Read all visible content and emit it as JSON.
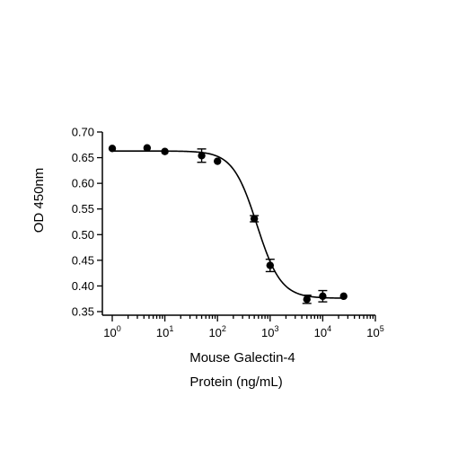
{
  "chart_data": {
    "type": "scatter",
    "title": "",
    "xlabel": [
      "Mouse Galectin-4",
      "Protein (ng/mL)"
    ],
    "ylabel": "OD 450nm",
    "xscale": "log",
    "xlim": [
      1,
      100000
    ],
    "ylim": [
      0.35,
      0.7
    ],
    "x_tick_labels": [
      {
        "base": "10",
        "exp": "0"
      },
      {
        "base": "10",
        "exp": "1"
      },
      {
        "base": "10",
        "exp": "2"
      },
      {
        "base": "10",
        "exp": "3"
      },
      {
        "base": "10",
        "exp": "4"
      },
      {
        "base": "10",
        "exp": "5"
      }
    ],
    "y_tick_labels": [
      "0.35",
      "0.40",
      "0.45",
      "0.50",
      "0.55",
      "0.60",
      "0.65",
      "0.70"
    ],
    "grid": false,
    "legend": "none",
    "series": [
      {
        "points": [
          {
            "x": 1,
            "y": 0.668,
            "err": 0.002
          },
          {
            "x": 4.6,
            "y": 0.669,
            "err": 0.002
          },
          {
            "x": 10,
            "y": 0.662,
            "err": 0.002
          },
          {
            "x": 50,
            "y": 0.654,
            "err": 0.013
          },
          {
            "x": 100,
            "y": 0.643,
            "err": 0.003
          },
          {
            "x": 500,
            "y": 0.531,
            "err": 0.006
          },
          {
            "x": 1000,
            "y": 0.44,
            "err": 0.012
          },
          {
            "x": 5000,
            "y": 0.374,
            "err": 0.008
          },
          {
            "x": 10000,
            "y": 0.38,
            "err": 0.011
          },
          {
            "x": 25000,
            "y": 0.38,
            "err": 0.002
          }
        ],
        "fit": {
          "model": "4PL",
          "top": 0.663,
          "bottom": 0.376,
          "ec50": 560,
          "hill": 1.9
        }
      }
    ],
    "colors": {
      "points": "#000000",
      "curve": "#000000"
    }
  }
}
